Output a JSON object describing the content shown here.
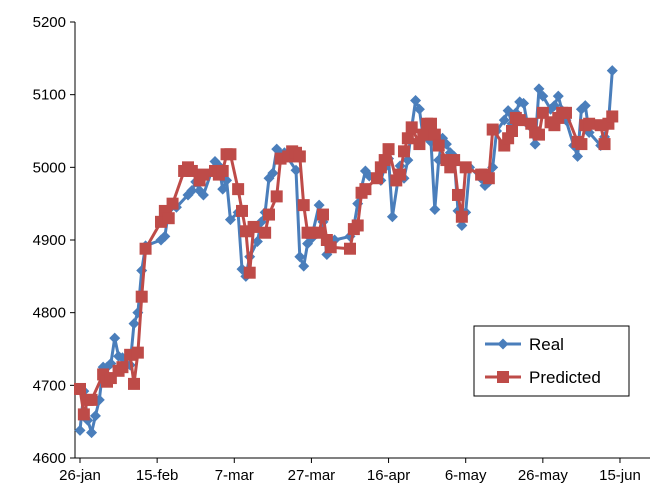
{
  "chart_data": {
    "type": "line",
    "title": "",
    "xlabel": "",
    "ylabel": "",
    "x_ticks": [
      "26-jan",
      "15-feb",
      "7-mar",
      "27-mar",
      "16-apr",
      "6-may",
      "26-may",
      "15-jun"
    ],
    "y_ticks": [
      4600,
      4700,
      4800,
      4900,
      5000,
      5100,
      5200
    ],
    "ylim": [
      4600,
      5200
    ],
    "xlim_days": [
      0,
      146
    ],
    "grid": false,
    "legend_position": "bottom-right",
    "series": [
      {
        "name": "Real",
        "color": "#4a7ebb",
        "marker": "diamond",
        "points": [
          [
            0,
            4638
          ],
          [
            1,
            4692
          ],
          [
            2,
            4652
          ],
          [
            3,
            4635
          ],
          [
            4,
            4658
          ],
          [
            5,
            4680
          ],
          [
            6,
            4725
          ],
          [
            7,
            4725
          ],
          [
            8,
            4730
          ],
          [
            9,
            4765
          ],
          [
            10,
            4740
          ],
          [
            11,
            4738
          ],
          [
            13,
            4728
          ],
          [
            14,
            4785
          ],
          [
            15,
            4800
          ],
          [
            16,
            4858
          ],
          [
            17,
            4892
          ],
          [
            21,
            4900
          ],
          [
            22,
            4905
          ],
          [
            23,
            4942
          ],
          [
            24,
            4950
          ],
          [
            25,
            4945
          ],
          [
            28,
            4962
          ],
          [
            29,
            4968
          ],
          [
            30,
            4980
          ],
          [
            31,
            4968
          ],
          [
            32,
            4962
          ],
          [
            35,
            5008
          ],
          [
            36,
            5002
          ],
          [
            37,
            4970
          ],
          [
            38,
            4982
          ],
          [
            39,
            4928
          ],
          [
            41,
            4938
          ],
          [
            42,
            4860
          ],
          [
            43,
            4850
          ],
          [
            44,
            4877
          ],
          [
            46,
            4898
          ],
          [
            47,
            4925
          ],
          [
            48,
            4938
          ],
          [
            49,
            4985
          ],
          [
            50,
            4992
          ],
          [
            51,
            5025
          ],
          [
            52,
            5018
          ],
          [
            53,
            5020
          ],
          [
            56,
            4996
          ],
          [
            57,
            4877
          ],
          [
            58,
            4864
          ],
          [
            59,
            4895
          ],
          [
            60,
            4902
          ],
          [
            62,
            4948
          ],
          [
            63,
            4925
          ],
          [
            64,
            4880
          ],
          [
            65,
            4888
          ],
          [
            66,
            4900
          ],
          [
            70,
            4905
          ],
          [
            71,
            4918
          ],
          [
            72,
            4950
          ],
          [
            74,
            4995
          ],
          [
            75,
            4988
          ],
          [
            77,
            4988
          ],
          [
            78,
            4982
          ],
          [
            79,
            5000
          ],
          [
            80,
            5012
          ],
          [
            81,
            4932
          ],
          [
            83,
            5002
          ],
          [
            84,
            4985
          ],
          [
            85,
            5010
          ],
          [
            86,
            5055
          ],
          [
            87,
            5092
          ],
          [
            88,
            5080
          ],
          [
            89,
            5040
          ],
          [
            91,
            5035
          ],
          [
            92,
            4942
          ],
          [
            93,
            5010
          ],
          [
            94,
            5040
          ],
          [
            95,
            5032
          ],
          [
            96,
            5020
          ],
          [
            97,
            5015
          ],
          [
            98,
            4940
          ],
          [
            99,
            4920
          ],
          [
            100,
            4938
          ],
          [
            101,
            5000
          ],
          [
            104,
            4985
          ],
          [
            105,
            4975
          ],
          [
            106,
            4980
          ],
          [
            107,
            5000
          ],
          [
            108,
            5050
          ],
          [
            110,
            5065
          ],
          [
            111,
            5078
          ],
          [
            112,
            5060
          ],
          [
            113,
            5075
          ],
          [
            114,
            5090
          ],
          [
            115,
            5088
          ],
          [
            116,
            5060
          ],
          [
            117,
            5055
          ],
          [
            118,
            5032
          ],
          [
            119,
            5108
          ],
          [
            120,
            5098
          ],
          [
            122,
            5080
          ],
          [
            123,
            5085
          ],
          [
            124,
            5098
          ],
          [
            125,
            5078
          ],
          [
            126,
            5065
          ],
          [
            128,
            5030
          ],
          [
            129,
            5015
          ],
          [
            130,
            5080
          ],
          [
            131,
            5085
          ],
          [
            132,
            5048
          ],
          [
            135,
            5030
          ],
          [
            136,
            5042
          ],
          [
            137,
            5060
          ],
          [
            138,
            5133
          ]
        ]
      },
      {
        "name": "Predicted",
        "color": "#be4b48",
        "marker": "square",
        "points": [
          [
            0,
            4695
          ],
          [
            1,
            4660
          ],
          [
            2,
            4680
          ],
          [
            3,
            4680
          ],
          [
            6,
            4715
          ],
          [
            7,
            4705
          ],
          [
            8,
            4710
          ],
          [
            10,
            4720
          ],
          [
            11,
            4725
          ],
          [
            13,
            4742
          ],
          [
            14,
            4702
          ],
          [
            15,
            4745
          ],
          [
            16,
            4822
          ],
          [
            17,
            4888
          ],
          [
            21,
            4925
          ],
          [
            22,
            4940
          ],
          [
            23,
            4930
          ],
          [
            24,
            4950
          ],
          [
            27,
            4995
          ],
          [
            28,
            5000
          ],
          [
            29,
            4995
          ],
          [
            31,
            4982
          ],
          [
            32,
            4990
          ],
          [
            35,
            4995
          ],
          [
            36,
            4990
          ],
          [
            37,
            4995
          ],
          [
            38,
            5018
          ],
          [
            39,
            5018
          ],
          [
            41,
            4970
          ],
          [
            42,
            4940
          ],
          [
            43,
            4912
          ],
          [
            44,
            4855
          ],
          [
            45,
            4918
          ],
          [
            48,
            4910
          ],
          [
            49,
            4935
          ],
          [
            51,
            4960
          ],
          [
            52,
            5012
          ],
          [
            54,
            5015
          ],
          [
            55,
            5022
          ],
          [
            56,
            5020
          ],
          [
            57,
            5015
          ],
          [
            58,
            4948
          ],
          [
            59,
            4910
          ],
          [
            60,
            4910
          ],
          [
            62,
            4910
          ],
          [
            63,
            4935
          ],
          [
            64,
            4900
          ],
          [
            65,
            4890
          ],
          [
            70,
            4888
          ],
          [
            71,
            4915
          ],
          [
            72,
            4920
          ],
          [
            73,
            4965
          ],
          [
            74,
            4970
          ],
          [
            77,
            4985
          ],
          [
            78,
            5000
          ],
          [
            79,
            5010
          ],
          [
            80,
            5025
          ],
          [
            82,
            4982
          ],
          [
            83,
            4990
          ],
          [
            84,
            5022
          ],
          [
            85,
            5040
          ],
          [
            86,
            5055
          ],
          [
            88,
            5032
          ],
          [
            89,
            5045
          ],
          [
            90,
            5060
          ],
          [
            91,
            5060
          ],
          [
            92,
            5045
          ],
          [
            93,
            5030
          ],
          [
            95,
            5010
          ],
          [
            96,
            5000
          ],
          [
            97,
            5010
          ],
          [
            98,
            4962
          ],
          [
            99,
            4932
          ],
          [
            100,
            5000
          ],
          [
            104,
            4990
          ],
          [
            105,
            4990
          ],
          [
            106,
            4985
          ],
          [
            107,
            5052
          ],
          [
            110,
            5030
          ],
          [
            111,
            5040
          ],
          [
            112,
            5050
          ],
          [
            113,
            5068
          ],
          [
            114,
            5065
          ],
          [
            117,
            5060
          ],
          [
            118,
            5048
          ],
          [
            119,
            5045
          ],
          [
            120,
            5075
          ],
          [
            122,
            5062
          ],
          [
            123,
            5058
          ],
          [
            124,
            5068
          ],
          [
            125,
            5075
          ],
          [
            126,
            5075
          ],
          [
            129,
            5035
          ],
          [
            130,
            5032
          ],
          [
            131,
            5058
          ],
          [
            132,
            5060
          ],
          [
            135,
            5058
          ],
          [
            136,
            5032
          ],
          [
            137,
            5060
          ],
          [
            138,
            5070
          ]
        ]
      }
    ]
  }
}
